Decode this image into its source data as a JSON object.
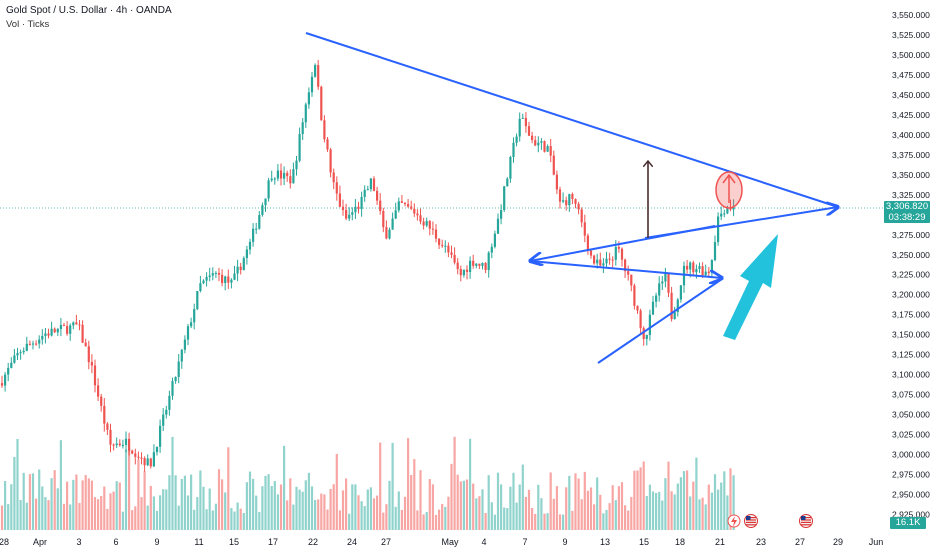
{
  "header": {
    "title": "Gold Spot / U.S. Dollar · 4h · OANDA",
    "volume_label": "Vol · Ticks"
  },
  "chart_data": {
    "type": "candlestick",
    "y_axis": {
      "position": "right",
      "range": [
        2912.5,
        3562.5
      ],
      "ticks": [
        "3,550.000",
        "3,525.000",
        "3,500.000",
        "3,475.000",
        "3,450.000",
        "3,425.000",
        "3,400.000",
        "3,375.000",
        "3,350.000",
        "3,325.000",
        "3,300.000",
        "3,275.000",
        "3,250.000",
        "3,225.000",
        "3,200.000",
        "3,175.000",
        "3,150.000",
        "3,125.000",
        "3,100.000",
        "3,075.000",
        "3,050.000",
        "3,025.000",
        "3,000.000",
        "2,975.000",
        "2,950.000",
        "2,925.000"
      ]
    },
    "x_axis": {
      "ticks": [
        "28",
        "Apr",
        "3",
        "6",
        "9",
        "11",
        "15",
        "17",
        "22",
        "24",
        "27",
        "May",
        "4",
        "7",
        "9",
        "13",
        "15",
        "18",
        "21",
        "23",
        "27",
        "29",
        "Jun"
      ]
    },
    "current_price": {
      "value": "3,306.820",
      "countdown": "03:38:29"
    },
    "volume_current": "16.1K",
    "colors": {
      "up": "#26a69a",
      "down": "#ef5350",
      "drawing": "#2962ff",
      "arrow_up": "#22c1dc",
      "arrow_dark": "#4a2b2b"
    },
    "drawings": [
      {
        "type": "trendline",
        "from": [
          "Apr 22",
          3525
        ],
        "to": [
          "May 29",
          3300
        ]
      },
      {
        "type": "arrow-line",
        "from": [
          "May 20",
          3285
        ],
        "to": [
          "May 29",
          3300
        ]
      },
      {
        "type": "arrow-line",
        "from": [
          "May 20",
          3278
        ],
        "to": [
          "May 4",
          3245
        ]
      },
      {
        "type": "arrow-line",
        "from": [
          "May 4",
          3245
        ],
        "to": [
          "May 20",
          3222
        ]
      },
      {
        "type": "line",
        "from": [
          "May 13",
          3105
        ],
        "to": [
          "May 20",
          3222
        ]
      },
      {
        "type": "arrow",
        "from": [
          "May 15",
          3275
        ],
        "to": [
          "May 15",
          3370
        ]
      },
      {
        "type": "ellipse",
        "at": [
          "May 21",
          3325
        ]
      },
      {
        "type": "arrow",
        "from": [
          "May 21",
          3160
        ],
        "to": [
          "May 22",
          3275
        ]
      }
    ],
    "icons": [
      "flash-icon",
      "us-flag-icon",
      "us-flag-icon"
    ]
  }
}
